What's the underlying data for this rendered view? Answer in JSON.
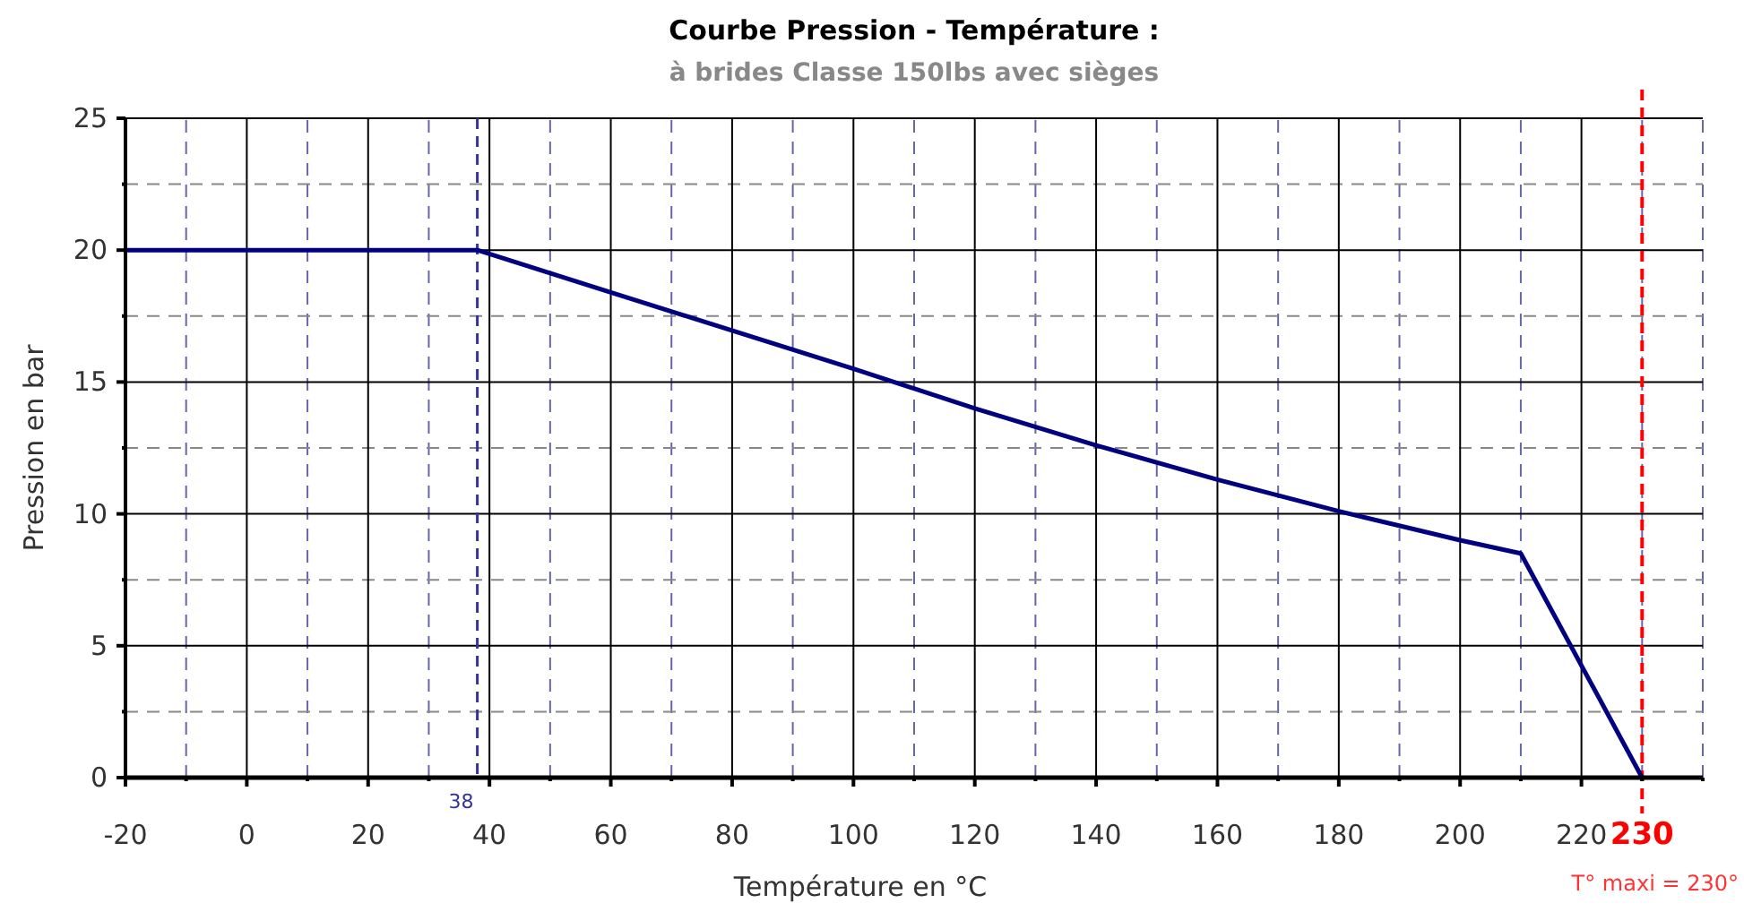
{
  "chart_data": {
    "type": "line",
    "title": "Courbe Pression - Température :",
    "subtitle": "à brides Classe 150lbs avec sièges",
    "xlabel": "Température en °C",
    "ylabel": "Pression en bar",
    "x": [
      -20,
      38,
      60,
      100,
      120,
      140,
      160,
      180,
      200,
      210,
      230
    ],
    "series": [
      {
        "color": "#000080",
        "values": [
          20,
          20,
          18.4,
          15.5,
          14.0,
          12.6,
          11.3,
          10.1,
          9.0,
          8.5,
          0
        ]
      }
    ],
    "xlim": [
      -20,
      240
    ],
    "xticks": [
      -20,
      {
        "value": -10,
        "label": null
      },
      0,
      {
        "value": 10,
        "label": null
      },
      20,
      {
        "value": 30,
        "label": null
      },
      40,
      {
        "value": 50,
        "label": null
      },
      60,
      {
        "value": 70,
        "label": null
      },
      80,
      {
        "value": 90,
        "label": null
      },
      100,
      {
        "value": 110,
        "label": null
      },
      120,
      {
        "value": 130,
        "label": null
      },
      140,
      {
        "value": 150,
        "label": null
      },
      160,
      {
        "value": 170,
        "label": null
      },
      180,
      {
        "value": 190,
        "label": null
      },
      200,
      {
        "value": 210,
        "label": null
      },
      220,
      {
        "value": 230,
        "label": null
      },
      {
        "value": 240,
        "label": null
      }
    ],
    "ylim": [
      0,
      25
    ],
    "yticks": [
      0,
      {
        "value": 2.5,
        "label": null
      },
      5,
      {
        "value": 7.5,
        "label": null
      },
      10,
      {
        "value": 12.5,
        "label": null
      },
      15,
      {
        "value": 17.5,
        "label": null
      },
      20,
      {
        "value": 22.5,
        "label": null
      },
      25
    ],
    "grid": true,
    "ref_lines": [
      {
        "axis": "x",
        "value": 38,
        "label": "38",
        "color": "#333399",
        "line_style": "dashed"
      },
      {
        "axis": "x",
        "value": 230,
        "label": "230",
        "color": "#ff0000",
        "line_style": "dashed"
      }
    ],
    "annotations": [
      "T° maxi = 230°"
    ]
  }
}
